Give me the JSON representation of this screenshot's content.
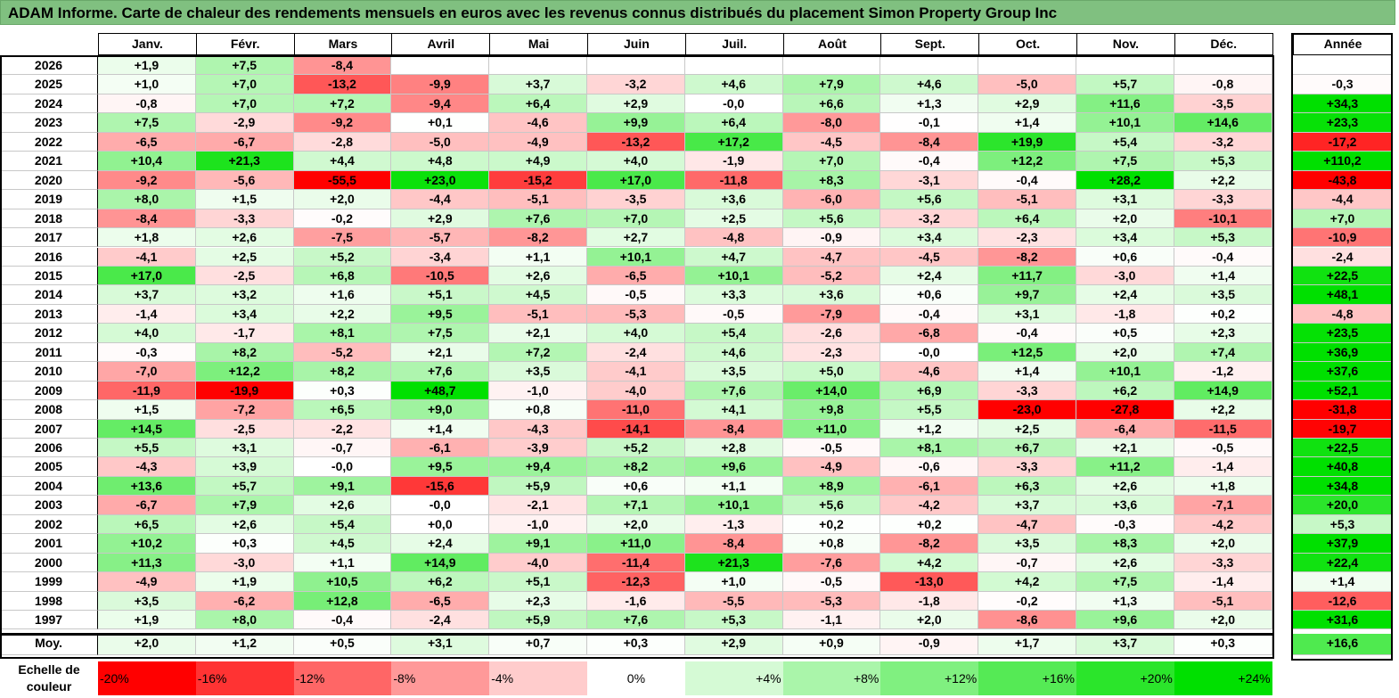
{
  "title": "ADAM Informe. Carte de chaleur des rendements mensuels en euros avec les revenus connus distribués du placement Simon Property Group Inc",
  "chart_data": {
    "type": "heatmap",
    "title": "ADAM Informe. Carte de chaleur des rendements mensuels en euros avec les revenus connus distribués du placement Simon Property Group Inc",
    "columns": [
      "Janv.",
      "Févr.",
      "Mars",
      "Avril",
      "Mai",
      "Juin",
      "Juil.",
      "Août",
      "Sept.",
      "Oct.",
      "Nov.",
      "Déc."
    ],
    "year_column": "Année",
    "rows": [
      {
        "label": "2026",
        "values": [
          "+1,9",
          "+7,5",
          "-8,4",
          "",
          "",
          "",
          "",
          "",
          "",
          "",
          "",
          ""
        ],
        "year": ""
      },
      {
        "label": "2025",
        "values": [
          "+1,0",
          "+7,0",
          "-13,2",
          "-9,9",
          "+3,7",
          "-3,2",
          "+4,6",
          "+7,9",
          "+4,6",
          "-5,0",
          "+5,7",
          "-0,8"
        ],
        "year": "-0,3"
      },
      {
        "label": "2024",
        "values": [
          "-0,8",
          "+7,0",
          "+7,2",
          "-9,4",
          "+6,4",
          "+2,9",
          "-0,0",
          "+6,6",
          "+1,3",
          "+2,9",
          "+11,6",
          "-3,5"
        ],
        "year": "+34,3"
      },
      {
        "label": "2023",
        "values": [
          "+7,5",
          "-2,9",
          "-9,2",
          "+0,1",
          "-4,6",
          "+9,9",
          "+6,4",
          "-8,0",
          "-0,1",
          "+1,4",
          "+10,1",
          "+14,6"
        ],
        "year": "+23,3"
      },
      {
        "label": "2022",
        "values": [
          "-6,5",
          "-6,7",
          "-2,8",
          "-5,0",
          "-4,9",
          "-13,2",
          "+17,2",
          "-4,5",
          "-8,4",
          "+19,9",
          "+5,4",
          "-3,2"
        ],
        "year": "-17,2"
      },
      {
        "label": "2021",
        "values": [
          "+10,4",
          "+21,3",
          "+4,4",
          "+4,8",
          "+4,9",
          "+4,0",
          "-1,9",
          "+7,0",
          "-0,4",
          "+12,2",
          "+7,5",
          "+5,3"
        ],
        "year": "+110,2"
      },
      {
        "label": "2020",
        "values": [
          "-9,2",
          "-5,6",
          "-55,5",
          "+23,0",
          "-15,2",
          "+17,0",
          "-11,8",
          "+8,3",
          "-3,1",
          "-0,4",
          "+28,2",
          "+2,2"
        ],
        "year": "-43,8"
      },
      {
        "label": "2019",
        "values": [
          "+8,0",
          "+1,5",
          "+2,0",
          "-4,4",
          "-5,1",
          "-3,5",
          "+3,6",
          "-6,0",
          "+5,6",
          "-5,1",
          "+3,1",
          "-3,3"
        ],
        "year": "-4,4"
      },
      {
        "label": "2018",
        "values": [
          "-8,4",
          "-3,3",
          "-0,2",
          "+2,9",
          "+7,6",
          "+7,0",
          "+2,5",
          "+5,6",
          "-3,2",
          "+6,4",
          "+2,0",
          "-10,1"
        ],
        "year": "+7,0"
      },
      {
        "label": "2017",
        "values": [
          "+1,8",
          "+2,6",
          "-7,5",
          "-5,7",
          "-8,2",
          "+2,7",
          "-4,8",
          "-0,9",
          "+3,4",
          "-2,3",
          "+3,4",
          "+5,3"
        ],
        "year": "-10,9"
      },
      {
        "label": "2016",
        "values": [
          "-4,1",
          "+2,5",
          "+5,2",
          "-3,4",
          "+1,1",
          "+10,1",
          "+4,7",
          "-4,7",
          "-4,5",
          "-8,2",
          "+0,6",
          "-0,4"
        ],
        "year": "-2,4"
      },
      {
        "label": "2015",
        "values": [
          "+17,0",
          "-2,5",
          "+6,8",
          "-10,5",
          "+2,6",
          "-6,5",
          "+10,1",
          "-5,2",
          "+2,4",
          "+11,7",
          "-3,0",
          "+1,4"
        ],
        "year": "+22,5"
      },
      {
        "label": "2014",
        "values": [
          "+3,7",
          "+3,2",
          "+1,6",
          "+5,1",
          "+4,5",
          "-0,5",
          "+3,3",
          "+3,6",
          "+0,6",
          "+9,7",
          "+2,4",
          "+3,5"
        ],
        "year": "+48,1"
      },
      {
        "label": "2013",
        "values": [
          "-1,4",
          "+3,4",
          "+2,2",
          "+9,5",
          "-5,1",
          "-5,3",
          "-0,5",
          "-7,9",
          "-0,4",
          "+3,1",
          "-1,8",
          "+0,2"
        ],
        "year": "-4,8"
      },
      {
        "label": "2012",
        "values": [
          "+4,0",
          "-1,7",
          "+8,1",
          "+7,5",
          "+2,1",
          "+4,0",
          "+5,4",
          "-2,6",
          "-6,8",
          "-0,4",
          "+0,5",
          "+2,3"
        ],
        "year": "+23,5"
      },
      {
        "label": "2011",
        "values": [
          "-0,3",
          "+8,2",
          "-5,2",
          "+2,1",
          "+7,2",
          "-2,4",
          "+4,6",
          "-2,3",
          "-0,0",
          "+12,5",
          "+2,0",
          "+7,4"
        ],
        "year": "+36,9"
      },
      {
        "label": "2010",
        "values": [
          "-7,0",
          "+12,2",
          "+8,2",
          "+7,6",
          "+3,5",
          "-4,1",
          "+3,5",
          "+5,0",
          "-4,6",
          "+1,4",
          "+10,1",
          "-1,2"
        ],
        "year": "+37,6"
      },
      {
        "label": "2009",
        "values": [
          "-11,9",
          "-19,9",
          "+0,3",
          "+48,7",
          "-1,0",
          "-4,0",
          "+7,6",
          "+14,0",
          "+6,9",
          "-3,3",
          "+6,2",
          "+14,9"
        ],
        "year": "+52,1"
      },
      {
        "label": "2008",
        "values": [
          "+1,5",
          "-7,2",
          "+6,5",
          "+9,0",
          "+0,8",
          "-11,0",
          "+4,1",
          "+9,8",
          "+5,5",
          "-23,0",
          "-27,8",
          "+2,2"
        ],
        "year": "-31,8"
      },
      {
        "label": "2007",
        "values": [
          "+14,5",
          "-2,5",
          "-2,2",
          "+1,4",
          "-4,3",
          "-14,1",
          "-8,4",
          "+11,0",
          "+1,2",
          "+2,5",
          "-6,4",
          "-11,5"
        ],
        "year": "-19,7"
      },
      {
        "label": "2006",
        "values": [
          "+5,5",
          "+3,1",
          "-0,7",
          "-6,1",
          "-3,9",
          "+5,2",
          "+2,8",
          "-0,5",
          "+8,1",
          "+6,7",
          "+2,1",
          "-0,5"
        ],
        "year": "+22,5"
      },
      {
        "label": "2005",
        "values": [
          "-4,3",
          "+3,9",
          "-0,0",
          "+9,5",
          "+9,4",
          "+8,2",
          "+9,6",
          "-4,9",
          "-0,6",
          "-3,3",
          "+11,2",
          "-1,4"
        ],
        "year": "+40,8"
      },
      {
        "label": "2004",
        "values": [
          "+13,6",
          "+5,7",
          "+9,1",
          "-15,6",
          "+5,9",
          "+0,6",
          "+1,1",
          "+8,9",
          "-6,1",
          "+6,3",
          "+2,6",
          "+1,8"
        ],
        "year": "+34,8"
      },
      {
        "label": "2003",
        "values": [
          "-6,7",
          "+7,9",
          "+2,6",
          "-0,0",
          "-2,1",
          "+7,1",
          "+10,1",
          "+5,6",
          "-4,2",
          "+3,7",
          "+3,6",
          "-7,1"
        ],
        "year": "+20,0"
      },
      {
        "label": "2002",
        "values": [
          "+6,5",
          "+2,6",
          "+5,4",
          "+0,0",
          "-1,0",
          "+2,0",
          "-1,3",
          "+0,2",
          "+0,2",
          "-4,7",
          "-0,3",
          "-4,2"
        ],
        "year": "+5,3"
      },
      {
        "label": "2001",
        "values": [
          "+10,2",
          "+0,3",
          "+4,5",
          "+2,4",
          "+9,1",
          "+11,0",
          "-8,4",
          "+0,8",
          "-8,2",
          "+3,5",
          "+8,3",
          "+2,0"
        ],
        "year": "+37,9"
      },
      {
        "label": "2000",
        "values": [
          "+11,3",
          "-3,0",
          "+1,1",
          "+14,9",
          "-4,0",
          "-11,4",
          "+21,3",
          "-7,6",
          "+4,2",
          "-0,7",
          "+2,6",
          "-3,3"
        ],
        "year": "+22,4"
      },
      {
        "label": "1999",
        "values": [
          "-4,9",
          "+1,9",
          "+10,5",
          "+6,2",
          "+5,1",
          "-12,3",
          "+1,0",
          "-0,5",
          "-13,0",
          "+4,2",
          "+7,5",
          "-1,4"
        ],
        "year": "+1,4"
      },
      {
        "label": "1998",
        "values": [
          "+3,5",
          "-6,2",
          "+12,8",
          "-6,5",
          "+2,3",
          "-1,6",
          "-5,5",
          "-5,3",
          "-1,8",
          "-0,2",
          "+1,3",
          "-5,1"
        ],
        "year": "-12,6"
      },
      {
        "label": "1997",
        "values": [
          "+1,9",
          "+8,0",
          "-0,4",
          "-2,4",
          "+5,9",
          "+7,6",
          "+5,3",
          "-1,1",
          "+2,0",
          "-8,6",
          "+9,6",
          "+2,0"
        ],
        "year": "+31,6"
      }
    ],
    "average_row": {
      "label": "Moy.",
      "values": [
        "+2,0",
        "+1,2",
        "+0,5",
        "+3,1",
        "+0,7",
        "+0,3",
        "+2,9",
        "+0,9",
        "-0,9",
        "+1,7",
        "+3,7",
        "+0,3"
      ],
      "year": "+16,6"
    },
    "color_scale": {
      "label": "Echelle de couleur",
      "stops": [
        "-20%",
        "-16%",
        "-12%",
        "-8%",
        "-4%",
        "0%",
        "+4%",
        "+8%",
        "+12%",
        "+16%",
        "+20%",
        "+24%"
      ],
      "negative_color": "#ff0000",
      "neutral_color": "#ffffff",
      "positive_color": "#00e000"
    }
  }
}
